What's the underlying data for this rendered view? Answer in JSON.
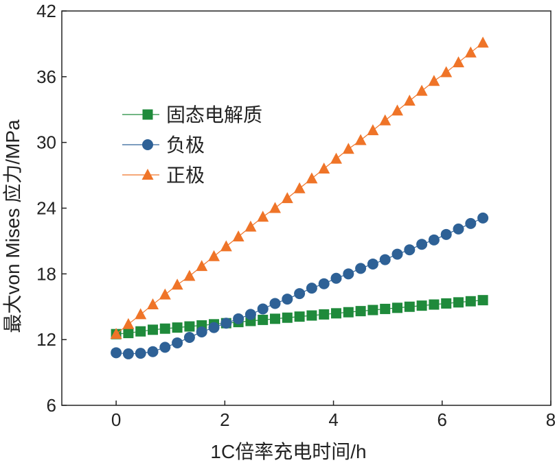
{
  "chart_data": {
    "type": "line",
    "title": "",
    "xlabel": "1C倍率充电时间/h",
    "ylabel": "最大von Mises 应力/MPa",
    "xlim": [
      -1,
      8
    ],
    "ylim": [
      6,
      42
    ],
    "xticks": [
      0,
      2,
      4,
      6,
      8
    ],
    "yticks": [
      6,
      12,
      18,
      24,
      30,
      36,
      42
    ],
    "grid": false,
    "legend_position": "upper-left",
    "series": [
      {
        "name": "固态电解质",
        "color": "#1f8a3b",
        "marker": "square",
        "x": [
          0,
          0.225,
          0.45,
          0.675,
          0.9,
          1.125,
          1.35,
          1.575,
          1.8,
          2.025,
          2.25,
          2.475,
          2.7,
          2.925,
          3.15,
          3.375,
          3.6,
          3.825,
          4.05,
          4.275,
          4.5,
          4.725,
          4.95,
          5.175,
          5.4,
          5.625,
          5.85,
          6.075,
          6.3,
          6.525,
          6.75
        ],
        "y": [
          12.5,
          12.6,
          12.75,
          12.9,
          13.0,
          13.1,
          13.2,
          13.3,
          13.4,
          13.5,
          13.6,
          13.7,
          13.8,
          13.9,
          14.0,
          14.1,
          14.2,
          14.3,
          14.4,
          14.5,
          14.6,
          14.7,
          14.8,
          14.9,
          15.0,
          15.1,
          15.2,
          15.3,
          15.4,
          15.5,
          15.6
        ]
      },
      {
        "name": "负极",
        "color": "#2e6196",
        "marker": "circle",
        "x": [
          0,
          0.225,
          0.45,
          0.675,
          0.9,
          1.125,
          1.35,
          1.575,
          1.8,
          2.025,
          2.25,
          2.475,
          2.7,
          2.925,
          3.15,
          3.375,
          3.6,
          3.825,
          4.05,
          4.275,
          4.5,
          4.725,
          4.95,
          5.175,
          5.4,
          5.625,
          5.85,
          6.075,
          6.3,
          6.525,
          6.75
        ],
        "y": [
          10.8,
          10.7,
          10.75,
          10.9,
          11.3,
          11.7,
          12.2,
          12.7,
          13.1,
          13.5,
          13.9,
          14.3,
          14.8,
          15.3,
          15.7,
          16.2,
          16.7,
          17.1,
          17.6,
          18.0,
          18.5,
          18.9,
          19.3,
          19.8,
          20.2,
          20.7,
          21.1,
          21.6,
          22.1,
          22.6,
          23.1
        ]
      },
      {
        "name": "正极",
        "color": "#ef7428",
        "marker": "triangle",
        "x": [
          0,
          0.225,
          0.45,
          0.675,
          0.9,
          1.125,
          1.35,
          1.575,
          1.8,
          2.025,
          2.25,
          2.475,
          2.7,
          2.925,
          3.15,
          3.375,
          3.6,
          3.825,
          4.05,
          4.275,
          4.5,
          4.725,
          4.95,
          5.175,
          5.4,
          5.625,
          5.85,
          6.075,
          6.3,
          6.525,
          6.75
        ],
        "y": [
          12.5,
          13.4,
          14.3,
          15.2,
          16.1,
          17.0,
          17.8,
          18.7,
          19.6,
          20.5,
          21.4,
          22.3,
          23.2,
          24.0,
          24.9,
          25.8,
          26.7,
          27.6,
          28.5,
          29.4,
          30.2,
          31.1,
          32.0,
          32.9,
          33.8,
          34.7,
          35.6,
          36.4,
          37.3,
          38.2,
          39.1
        ]
      }
    ]
  }
}
